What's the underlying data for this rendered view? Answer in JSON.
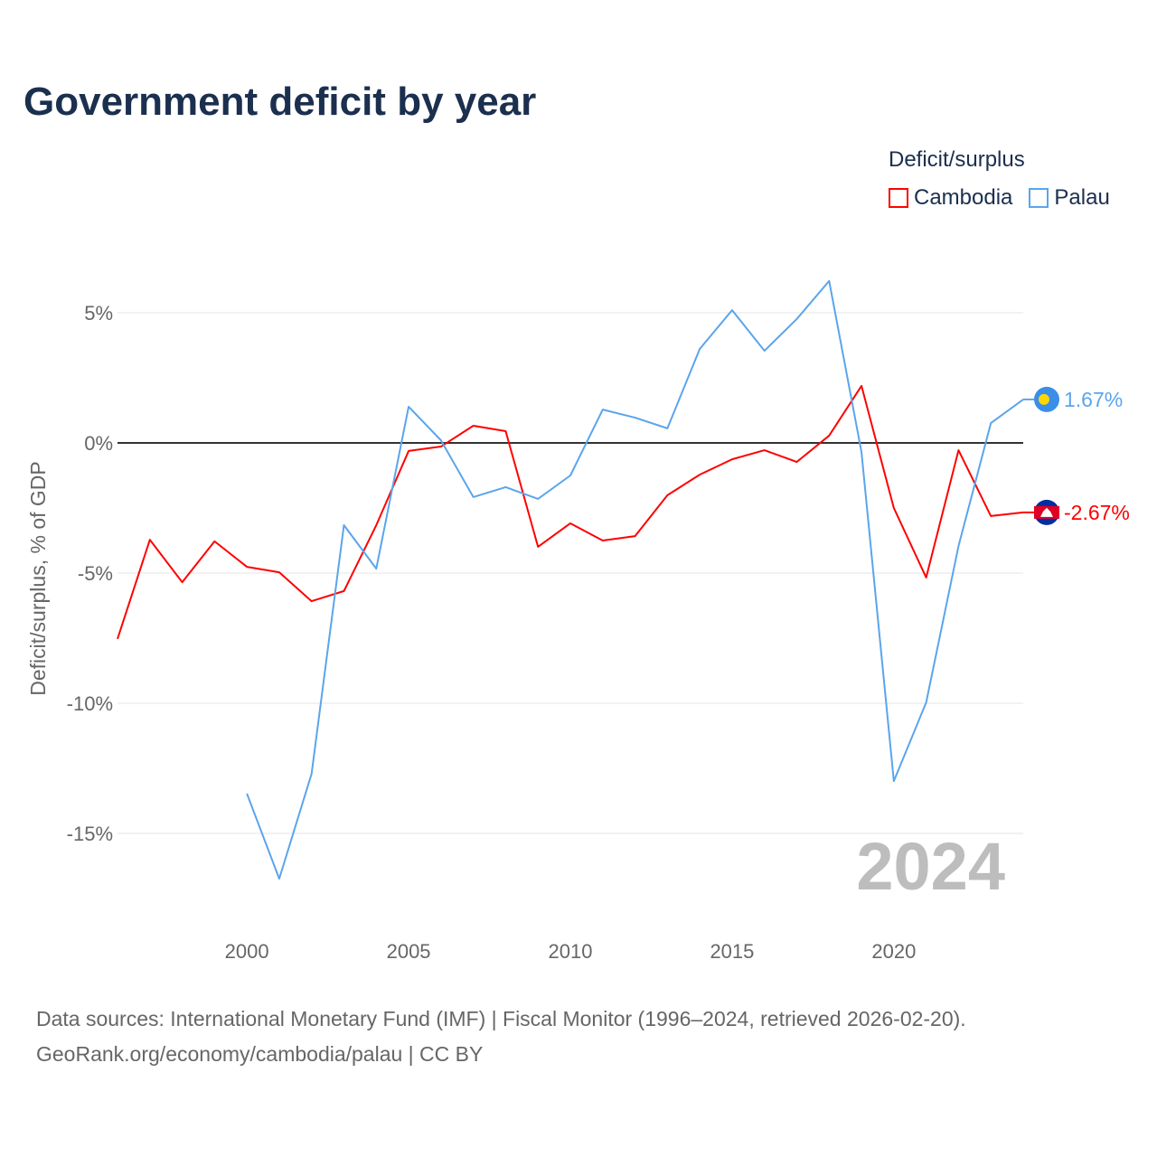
{
  "chart_data": {
    "type": "line",
    "title": "Government deficit by year",
    "xlabel": "",
    "ylabel": "Deficit/surplus, % of GDP",
    "xlim": [
      1996,
      2024
    ],
    "ylim": [
      -18,
      8
    ],
    "x_ticks": [
      2000,
      2005,
      2010,
      2015,
      2020
    ],
    "y_ticks": [
      5,
      0,
      -5,
      -10,
      -15
    ],
    "y_tick_labels": [
      "5%",
      "0%",
      "-5%",
      "-10%",
      "-15%"
    ],
    "x_tick_labels": [
      "2000",
      "2005",
      "2010",
      "2015",
      "2020"
    ],
    "legend_title": "Deficit/surplus",
    "legend_position": "top-right",
    "watermark_year": "2024",
    "series": [
      {
        "name": "Cambodia",
        "color": "#ff0000",
        "end_label": "-2.67%",
        "x": [
          1996,
          1997,
          1998,
          1999,
          2000,
          2001,
          2002,
          2003,
          2004,
          2005,
          2006,
          2007,
          2008,
          2009,
          2010,
          2011,
          2012,
          2013,
          2014,
          2015,
          2016,
          2017,
          2018,
          2019,
          2020,
          2021,
          2022,
          2023,
          2024
        ],
        "values": [
          -7.53,
          -3.72,
          -5.35,
          -3.78,
          -4.76,
          -4.97,
          -6.08,
          -5.69,
          -3.16,
          -0.31,
          -0.14,
          0.66,
          0.45,
          -3.99,
          -3.09,
          -3.75,
          -3.58,
          -2.01,
          -1.22,
          -0.63,
          -0.28,
          -0.73,
          0.28,
          2.19,
          -2.5,
          -5.17,
          -0.28,
          -2.81,
          -2.67
        ]
      },
      {
        "name": "Palau",
        "color": "#5aa5ec",
        "end_label": "1.67%",
        "x": [
          2000,
          2001,
          2002,
          2003,
          2004,
          2005,
          2006,
          2007,
          2008,
          2009,
          2010,
          2011,
          2012,
          2013,
          2014,
          2015,
          2016,
          2017,
          2018,
          2019,
          2020,
          2021,
          2022,
          2023,
          2024
        ],
        "values": [
          -13.47,
          -16.74,
          -12.71,
          -3.16,
          -4.83,
          1.39,
          0.1,
          -2.08,
          -1.7,
          -2.15,
          -1.25,
          1.28,
          0.97,
          0.56,
          3.61,
          5.1,
          3.54,
          4.76,
          6.22,
          -0.35,
          -12.99,
          -9.97,
          -3.96,
          0.76,
          1.67
        ]
      }
    ]
  },
  "footer": {
    "line1": "Data sources: International Monetary Fund (IMF) | Fiscal Monitor (1996–2024, retrieved 2026-02-20).",
    "line2": "GeoRank.org/economy/cambodia/palau | CC BY"
  }
}
